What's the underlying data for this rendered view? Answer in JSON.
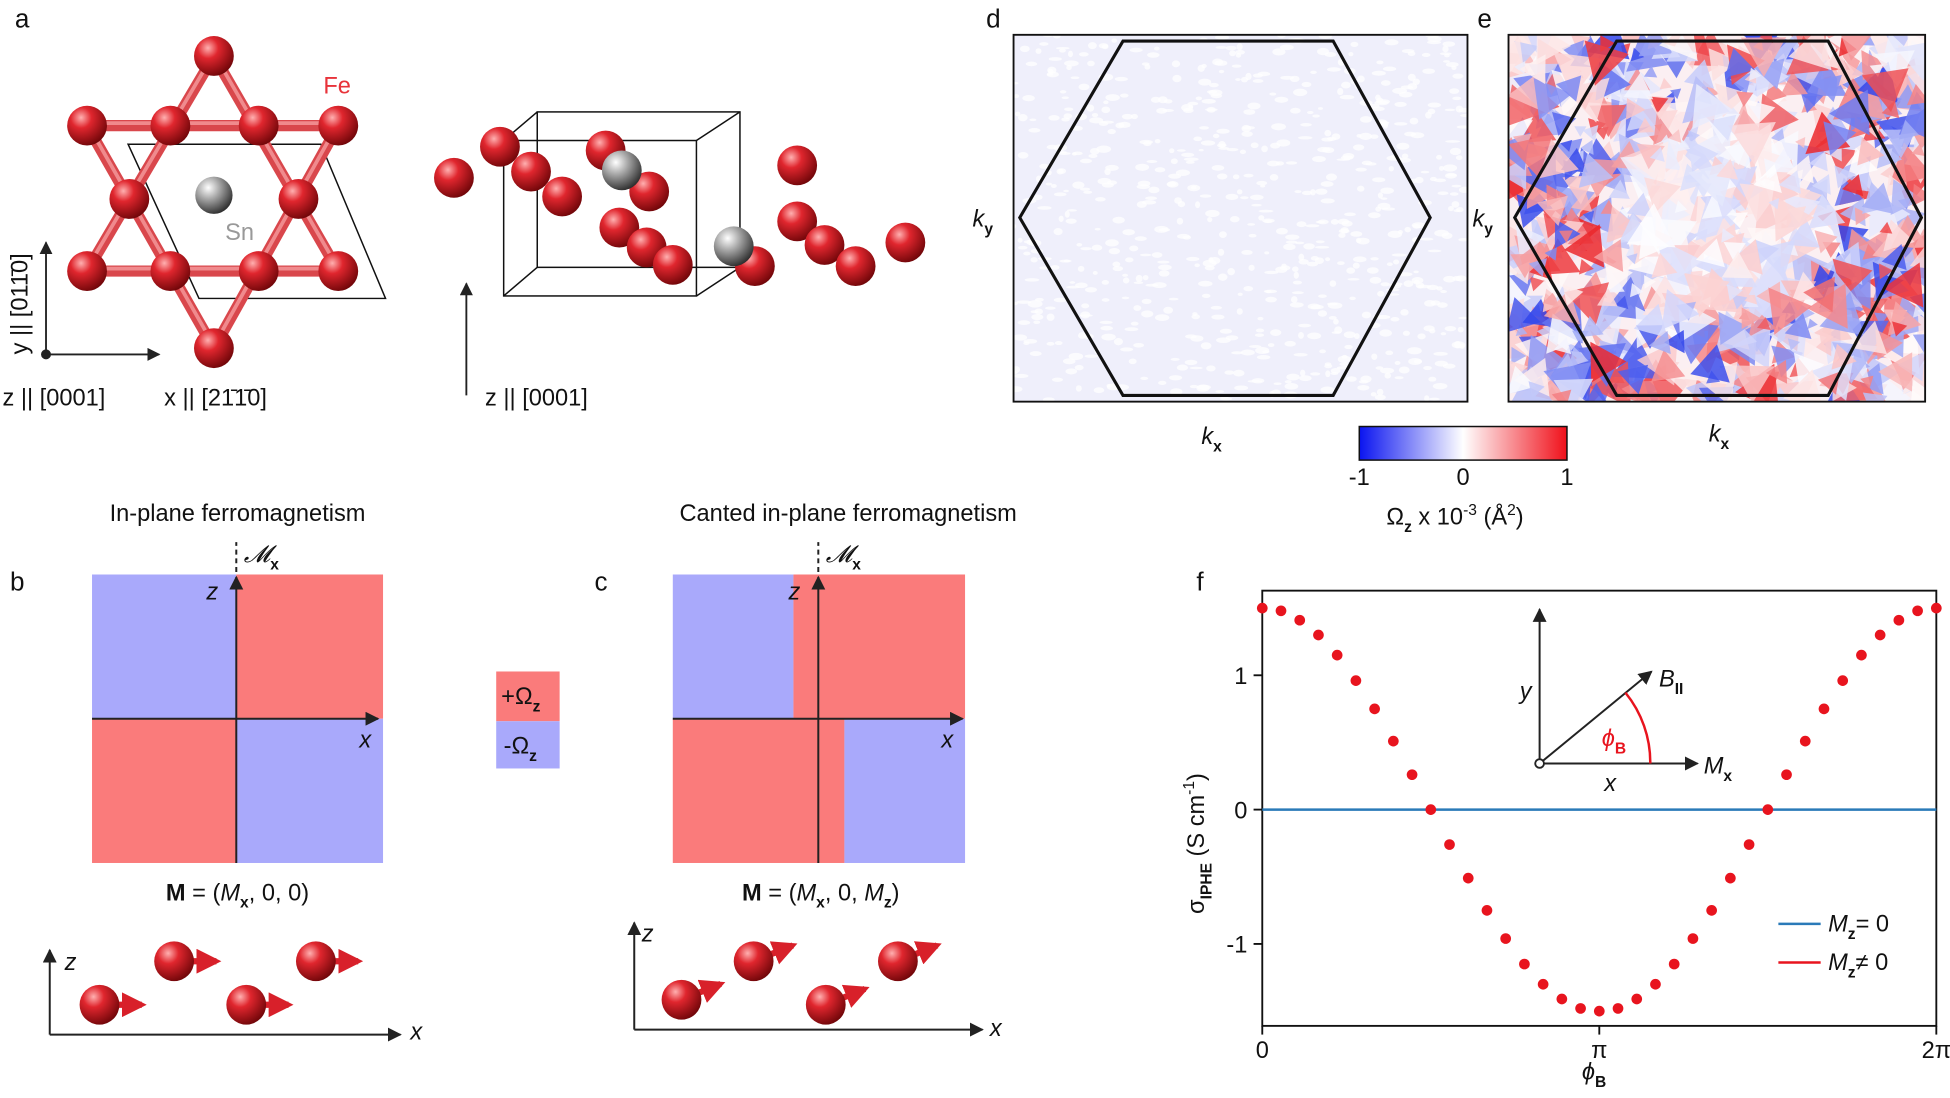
{
  "panel_labels": [
    "a",
    "b",
    "c",
    "d",
    "e",
    "f"
  ],
  "panel_a": {
    "fe": "Fe",
    "sn": "Sn",
    "y_axis": "y || [011̄0]",
    "z_axis": "z || [0001]",
    "x_axis": "x || [21̄1̄0]",
    "z_axis_side": "z || [0001]"
  },
  "panel_b": {
    "title": "In-plane ferromagnetism",
    "z": "z",
    "x": "x",
    "mx": [
      "𝓜",
      "x"
    ],
    "formula": [
      "M",
      " = (",
      "M",
      "x",
      ", 0, 0)"
    ],
    "bottom_z": "z",
    "bottom_x": "x"
  },
  "panel_c": {
    "title": "Canted in-plane ferromagnetism",
    "z": "z",
    "x": "x",
    "mx": [
      "𝓜",
      "x"
    ],
    "formula": [
      "M",
      " = (",
      "M",
      "x",
      ", 0, ",
      "M",
      "z",
      ")"
    ],
    "bottom_z": "z",
    "bottom_x": "x"
  },
  "omega_legend": {
    "plus": [
      "+Ω",
      "z"
    ],
    "minus": [
      "-Ω",
      "z"
    ],
    "plus_color": "#fa7b7b",
    "minus_color": "#a9a9fb"
  },
  "panel_d": {
    "ky": [
      "k",
      "y"
    ],
    "kx": [
      "k",
      "x"
    ]
  },
  "panel_e": {
    "ky": [
      "k",
      "y"
    ],
    "kx": [
      "k",
      "x"
    ]
  },
  "colorbar": {
    "range": [
      -1,
      1
    ],
    "ticks": [
      -1,
      0,
      1
    ],
    "colors": [
      "#0a14f0",
      "#ffffff",
      "#f0101a"
    ],
    "label": [
      "Ω",
      "z",
      " x 10",
      "-3",
      " (Å",
      "2",
      ")"
    ]
  },
  "chart_data": {
    "type": "scatter",
    "xlabel": [
      "ϕ",
      "B"
    ],
    "ylabel": [
      "σ",
      "IPHE",
      " (S cm",
      "-1",
      ")"
    ],
    "xlim": [
      0,
      6.2832
    ],
    "ylim": [
      -1.61,
      1.63
    ],
    "xticks": [
      0,
      {
        "value": 3.1416,
        "label": "π"
      },
      {
        "value": 6.2832,
        "label": "2π"
      }
    ],
    "yticks": [
      -1,
      0,
      1
    ],
    "series": [
      {
        "name": [
          "M",
          "z",
          "= 0"
        ],
        "color": "#2a7ab8",
        "mode": "line",
        "x": [
          0,
          6.2832
        ],
        "values": [
          0,
          0
        ]
      },
      {
        "name": [
          "M",
          "z",
          "≠ 0"
        ],
        "color": "#e8141e",
        "mode": "markers",
        "x": [
          0,
          0.1745,
          0.3491,
          0.5236,
          0.6981,
          0.8727,
          1.0472,
          1.2217,
          1.3963,
          1.5708,
          1.7453,
          1.9199,
          2.0944,
          2.2689,
          2.4435,
          2.618,
          2.7925,
          2.9671,
          3.1416,
          3.3161,
          3.4907,
          3.6652,
          3.8397,
          4.0143,
          4.1888,
          4.3633,
          4.5379,
          4.7124,
          4.8869,
          5.0615,
          5.236,
          5.4105,
          5.5851,
          5.7596,
          5.9341,
          6.1087,
          6.2832
        ],
        "values": [
          1.5,
          1.48,
          1.41,
          1.3,
          1.15,
          0.96,
          0.75,
          0.51,
          0.26,
          0,
          -0.26,
          -0.51,
          -0.75,
          -0.96,
          -1.15,
          -1.3,
          -1.41,
          -1.48,
          -1.5,
          -1.48,
          -1.41,
          -1.3,
          -1.15,
          -0.96,
          -0.75,
          -0.51,
          -0.26,
          0,
          0.26,
          0.51,
          0.75,
          0.96,
          1.15,
          1.3,
          1.41,
          1.48,
          1.5
        ]
      }
    ],
    "inset": {
      "y": "y",
      "x": "x",
      "b": [
        "B",
        "II"
      ],
      "mx": [
        "M",
        "x"
      ],
      "phi": [
        "ϕ",
        "B"
      ],
      "phi_color": "#e8141e"
    }
  }
}
